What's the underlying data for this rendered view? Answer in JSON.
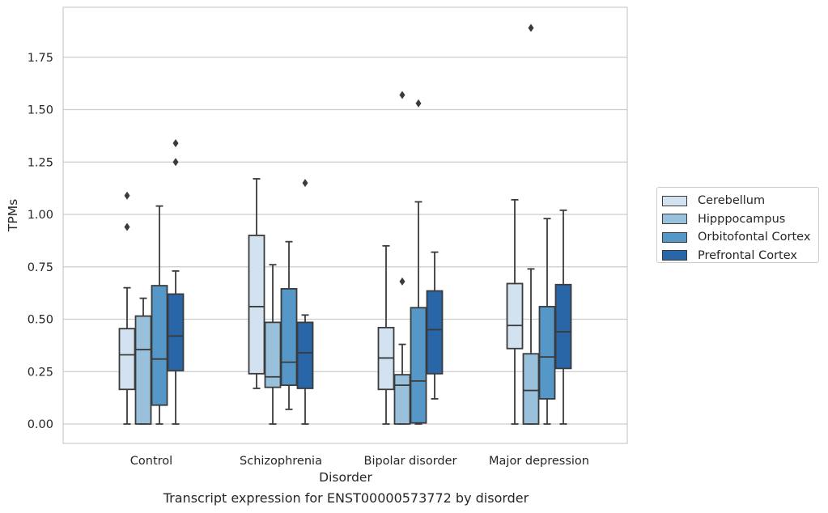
{
  "chart_data": {
    "type": "box",
    "title": "",
    "caption": "Transcript expression for ENST00000573772 by disorder",
    "xlabel": "Disorder",
    "ylabel": "TPMs",
    "ylim": [
      -0.09,
      1.99
    ],
    "yticks": [
      "0.00",
      "0.25",
      "0.50",
      "0.75",
      "1.00",
      "1.25",
      "1.50",
      "1.75"
    ],
    "ytick_values": [
      0,
      0.25,
      0.5,
      0.75,
      1.0,
      1.25,
      1.5,
      1.75
    ],
    "grid": "horizontal",
    "legend_position": "right",
    "categories": [
      "Control",
      "Schizophrenia",
      "Bipolar disorder",
      "Major depression"
    ],
    "series": [
      {
        "name": "Cerebellum",
        "color": "#d3e2f1",
        "boxes": [
          {
            "whisker_low": 0,
            "q1": 0.165,
            "median": 0.33,
            "q3": 0.455,
            "whisker_high": 0.65,
            "outliers": [
              0.94,
              1.09
            ]
          },
          {
            "whisker_low": 0.17,
            "q1": 0.24,
            "median": 0.56,
            "q3": 0.9,
            "whisker_high": 1.17,
            "outliers": []
          },
          {
            "whisker_low": 0,
            "q1": 0.165,
            "median": 0.315,
            "q3": 0.46,
            "whisker_high": 0.85,
            "outliers": []
          },
          {
            "whisker_low": 0,
            "q1": 0.36,
            "median": 0.47,
            "q3": 0.67,
            "whisker_high": 1.07,
            "outliers": []
          }
        ]
      },
      {
        "name": "Hipppocampus",
        "color": "#9ac1dc",
        "boxes": [
          {
            "whisker_low": 0,
            "q1": 0,
            "median": 0.355,
            "q3": 0.515,
            "whisker_high": 0.6,
            "outliers": []
          },
          {
            "whisker_low": 0,
            "q1": 0.175,
            "median": 0.225,
            "q3": 0.485,
            "whisker_high": 0.76,
            "outliers": []
          },
          {
            "whisker_low": 0,
            "q1": 0,
            "median": 0.185,
            "q3": 0.235,
            "whisker_high": 0.38,
            "outliers": [
              0.68,
              1.57
            ]
          },
          {
            "whisker_low": 0,
            "q1": 0,
            "median": 0.16,
            "q3": 0.335,
            "whisker_high": 0.74,
            "outliers": [
              1.89
            ]
          }
        ]
      },
      {
        "name": "Orbitofontal Cortex",
        "color": "#5597c7",
        "boxes": [
          {
            "whisker_low": 0,
            "q1": 0.09,
            "median": 0.31,
            "q3": 0.66,
            "whisker_high": 1.04,
            "outliers": []
          },
          {
            "whisker_low": 0.07,
            "q1": 0.185,
            "median": 0.295,
            "q3": 0.645,
            "whisker_high": 0.87,
            "outliers": []
          },
          {
            "whisker_low": 0,
            "q1": 0.005,
            "median": 0.205,
            "q3": 0.555,
            "whisker_high": 1.06,
            "outliers": [
              1.53
            ]
          },
          {
            "whisker_low": 0,
            "q1": 0.12,
            "median": 0.32,
            "q3": 0.56,
            "whisker_high": 0.98,
            "outliers": []
          }
        ]
      },
      {
        "name": "Prefrontal Cortex",
        "color": "#2966a8",
        "boxes": [
          {
            "whisker_low": 0,
            "q1": 0.255,
            "median": 0.42,
            "q3": 0.62,
            "whisker_high": 0.73,
            "outliers": [
              1.25,
              1.34
            ]
          },
          {
            "whisker_low": 0,
            "q1": 0.17,
            "median": 0.34,
            "q3": 0.485,
            "whisker_high": 0.52,
            "outliers": [
              1.15
            ]
          },
          {
            "whisker_low": 0.12,
            "q1": 0.24,
            "median": 0.45,
            "q3": 0.635,
            "whisker_high": 0.82,
            "outliers": []
          },
          {
            "whisker_low": 0,
            "q1": 0.265,
            "median": 0.44,
            "q3": 0.665,
            "whisker_high": 1.02,
            "outliers": []
          }
        ]
      }
    ]
  }
}
